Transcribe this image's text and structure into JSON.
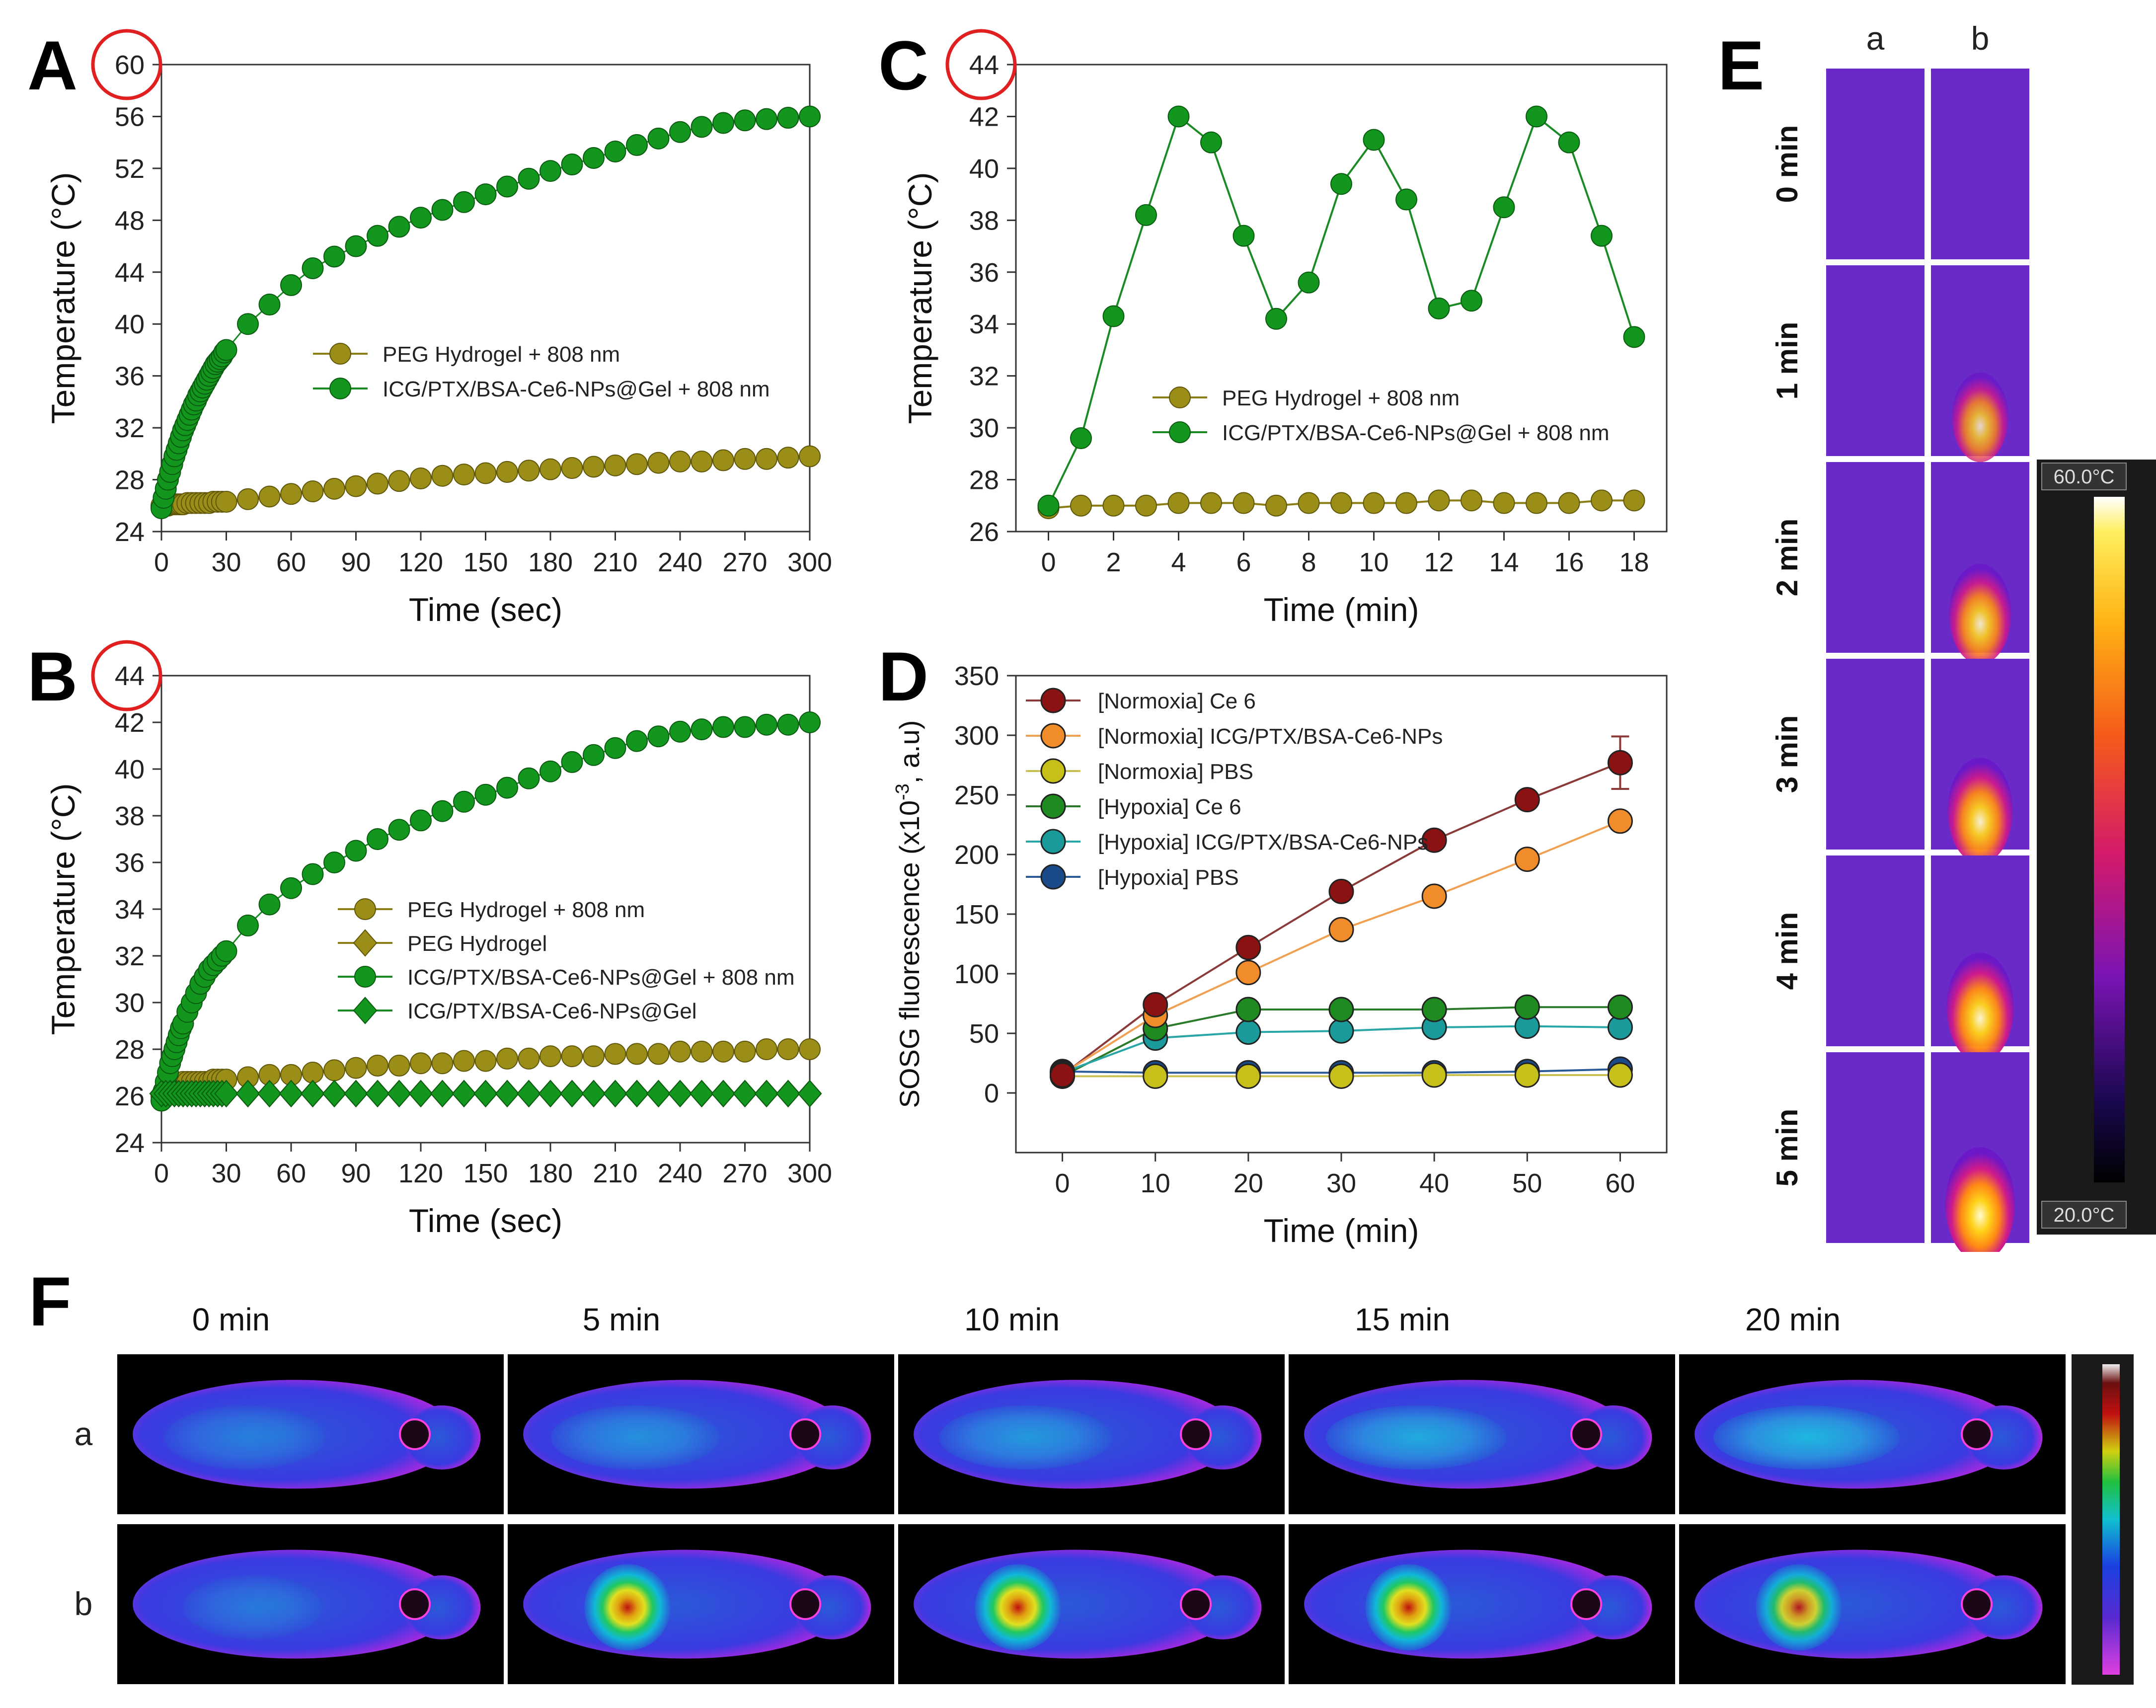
{
  "colors": {
    "olive": "#9b8e18",
    "olive_edge": "#5f560a",
    "green": "#12961e",
    "green_edge": "#0a5a10",
    "line_olive": "#8a7e14",
    "line_green": "#1a8a24",
    "circle": "#e02020"
  },
  "panel_labels": {
    "A": "A",
    "B": "B",
    "C": "C",
    "D": "D",
    "E": "E",
    "F": "F"
  },
  "chart_data": [
    {
      "id": "A",
      "type": "scatter",
      "xlabel": "Time (sec)",
      "ylabel": "Temperature (°C)",
      "xlim": [
        0,
        300
      ],
      "ylim": [
        24,
        60
      ],
      "xticks": [
        "0",
        "30",
        "60",
        "90",
        "120",
        "150",
        "180",
        "210",
        "240",
        "270",
        "300"
      ],
      "yticks": [
        "24",
        "28",
        "32",
        "36",
        "40",
        "44",
        "48",
        "52",
        "56",
        "60"
      ],
      "highlight_tick": "60",
      "series": [
        {
          "name": "PEG Hydrogel + 808 nm",
          "marker": "circle",
          "color": "olive",
          "x": [
            0,
            1,
            2,
            3,
            4,
            5,
            6,
            7,
            8,
            9,
            10,
            12,
            14,
            16,
            18,
            20,
            22,
            24,
            26,
            28,
            30,
            40,
            50,
            60,
            70,
            80,
            90,
            100,
            110,
            120,
            130,
            140,
            150,
            160,
            170,
            180,
            190,
            200,
            210,
            220,
            230,
            240,
            250,
            260,
            270,
            280,
            290,
            300
          ],
          "y": [
            26.0,
            26.0,
            26.0,
            26.0,
            26.1,
            26.1,
            26.1,
            26.1,
            26.1,
            26.1,
            26.1,
            26.2,
            26.2,
            26.2,
            26.2,
            26.2,
            26.2,
            26.3,
            26.3,
            26.3,
            26.3,
            26.5,
            26.7,
            26.9,
            27.1,
            27.3,
            27.5,
            27.7,
            27.9,
            28.1,
            28.3,
            28.4,
            28.5,
            28.6,
            28.7,
            28.8,
            28.9,
            29.0,
            29.1,
            29.2,
            29.3,
            29.4,
            29.4,
            29.5,
            29.6,
            29.6,
            29.7,
            29.8
          ]
        },
        {
          "name": "ICG/PTX/BSA-Ce6-NPs@Gel + 808 nm",
          "marker": "circle",
          "color": "green",
          "x": [
            0,
            1,
            2,
            3,
            4,
            5,
            6,
            7,
            8,
            9,
            10,
            11,
            12,
            13,
            14,
            15,
            16,
            17,
            18,
            19,
            20,
            21,
            22,
            23,
            24,
            25,
            26,
            27,
            28,
            29,
            30,
            40,
            50,
            60,
            70,
            80,
            90,
            100,
            110,
            120,
            130,
            140,
            150,
            160,
            170,
            180,
            190,
            200,
            210,
            220,
            230,
            240,
            250,
            260,
            270,
            280,
            290,
            300
          ],
          "y": [
            25.8,
            26.6,
            27.3,
            28.0,
            28.6,
            29.2,
            29.8,
            30.3,
            30.8,
            31.3,
            31.8,
            32.2,
            32.6,
            33.0,
            33.4,
            33.8,
            34.1,
            34.5,
            34.8,
            35.1,
            35.4,
            35.7,
            36.0,
            36.3,
            36.6,
            36.9,
            37.1,
            37.3,
            37.5,
            37.8,
            38.0,
            40.0,
            41.5,
            43.0,
            44.3,
            45.2,
            46.0,
            46.8,
            47.5,
            48.2,
            48.8,
            49.4,
            50.0,
            50.6,
            51.2,
            51.8,
            52.3,
            52.8,
            53.3,
            53.8,
            54.3,
            54.8,
            55.2,
            55.5,
            55.7,
            55.8,
            55.9,
            56.0
          ]
        }
      ],
      "legend": [
        "PEG Hydrogel + 808 nm",
        "ICG/PTX/BSA-Ce6-NPs@Gel + 808 nm"
      ]
    },
    {
      "id": "B",
      "type": "scatter",
      "xlabel": "Time (sec)",
      "ylabel": "Temperature (°C)",
      "xlim": [
        0,
        300
      ],
      "ylim": [
        24,
        44
      ],
      "xticks": [
        "0",
        "30",
        "60",
        "90",
        "120",
        "150",
        "180",
        "210",
        "240",
        "270",
        "300"
      ],
      "yticks": [
        "24",
        "26",
        "28",
        "30",
        "32",
        "34",
        "36",
        "38",
        "40",
        "42",
        "44"
      ],
      "highlight_tick": "44",
      "series": [
        {
          "name": "PEG Hydrogel + 808 nm",
          "marker": "circle",
          "color": "olive",
          "x": [
            0,
            2,
            4,
            6,
            8,
            10,
            12,
            14,
            16,
            18,
            20,
            22,
            24,
            26,
            28,
            30,
            40,
            50,
            60,
            70,
            80,
            90,
            100,
            110,
            120,
            130,
            140,
            150,
            160,
            170,
            180,
            190,
            200,
            210,
            220,
            230,
            240,
            250,
            260,
            270,
            280,
            290,
            300
          ],
          "y": [
            26.0,
            26.2,
            26.4,
            26.5,
            26.5,
            26.6,
            26.6,
            26.6,
            26.6,
            26.6,
            26.6,
            26.6,
            26.7,
            26.7,
            26.7,
            26.7,
            26.8,
            26.9,
            26.9,
            27.0,
            27.1,
            27.2,
            27.3,
            27.3,
            27.4,
            27.4,
            27.5,
            27.5,
            27.6,
            27.6,
            27.7,
            27.7,
            27.7,
            27.8,
            27.8,
            27.8,
            27.9,
            27.9,
            27.9,
            27.9,
            28.0,
            28.0,
            28.0
          ]
        },
        {
          "name": "PEG Hydrogel",
          "marker": "diamond",
          "color": "olive",
          "x": [
            0,
            10,
            20,
            30,
            40,
            50,
            60,
            70,
            80,
            90,
            100,
            110,
            120,
            130,
            140,
            150,
            160,
            170,
            180,
            190,
            200,
            210,
            220,
            230,
            240,
            250,
            260,
            270,
            280,
            290,
            300
          ],
          "y": [
            26.1,
            26.1,
            26.1,
            26.1,
            26.1,
            26.1,
            26.1,
            26.1,
            26.1,
            26.1,
            26.1,
            26.1,
            26.1,
            26.1,
            26.1,
            26.1,
            26.1,
            26.1,
            26.1,
            26.1,
            26.1,
            26.1,
            26.1,
            26.1,
            26.1,
            26.1,
            26.1,
            26.1,
            26.1,
            26.1,
            26.1
          ]
        },
        {
          "name": "ICG/PTX/BSA-Ce6-NPs@Gel + 808 nm",
          "marker": "circle",
          "color": "green",
          "x": [
            0,
            1,
            2,
            3,
            4,
            5,
            6,
            7,
            8,
            9,
            10,
            12,
            14,
            16,
            18,
            20,
            22,
            24,
            26,
            28,
            30,
            40,
            50,
            60,
            70,
            80,
            90,
            100,
            110,
            120,
            130,
            140,
            150,
            160,
            170,
            180,
            190,
            200,
            210,
            220,
            230,
            240,
            250,
            260,
            270,
            280,
            290,
            300
          ],
          "y": [
            25.8,
            26.2,
            26.6,
            27.0,
            27.4,
            27.7,
            28.0,
            28.3,
            28.6,
            28.9,
            29.1,
            29.6,
            30.0,
            30.4,
            30.8,
            31.1,
            31.4,
            31.6,
            31.8,
            32.0,
            32.2,
            33.3,
            34.2,
            34.9,
            35.5,
            36.0,
            36.5,
            37.0,
            37.4,
            37.8,
            38.2,
            38.6,
            38.9,
            39.2,
            39.6,
            39.9,
            40.3,
            40.6,
            40.9,
            41.2,
            41.4,
            41.6,
            41.7,
            41.8,
            41.8,
            41.9,
            41.9,
            42.0
          ]
        },
        {
          "name": "ICG/PTX/BSA-Ce6-NPs@Gel",
          "marker": "diamond",
          "color": "green",
          "x": [
            0,
            2,
            4,
            6,
            8,
            10,
            12,
            14,
            16,
            18,
            20,
            22,
            24,
            26,
            28,
            30,
            40,
            50,
            60,
            70,
            80,
            90,
            100,
            110,
            120,
            130,
            140,
            150,
            160,
            170,
            180,
            190,
            200,
            210,
            220,
            230,
            240,
            250,
            260,
            270,
            280,
            290,
            300
          ],
          "y": [
            26.1,
            26.1,
            26.1,
            26.1,
            26.1,
            26.1,
            26.1,
            26.1,
            26.1,
            26.1,
            26.1,
            26.1,
            26.1,
            26.1,
            26.1,
            26.1,
            26.1,
            26.1,
            26.1,
            26.1,
            26.1,
            26.1,
            26.1,
            26.1,
            26.1,
            26.1,
            26.1,
            26.1,
            26.1,
            26.1,
            26.1,
            26.1,
            26.1,
            26.1,
            26.1,
            26.1,
            26.1,
            26.1,
            26.1,
            26.1,
            26.1,
            26.1,
            26.1
          ]
        }
      ],
      "legend": [
        "PEG Hydrogel + 808 nm",
        "PEG Hydrogel",
        "ICG/PTX/BSA-Ce6-NPs@Gel + 808 nm",
        "ICG/PTX/BSA-Ce6-NPs@Gel"
      ]
    },
    {
      "id": "C",
      "type": "line",
      "xlabel": "Time (min)",
      "ylabel": "Temperature (°C)",
      "xlim": [
        -1,
        19
      ],
      "ylim": [
        26,
        44
      ],
      "xticks": [
        "0",
        "2",
        "4",
        "6",
        "8",
        "10",
        "12",
        "14",
        "16",
        "18"
      ],
      "yticks": [
        "26",
        "28",
        "30",
        "32",
        "34",
        "36",
        "38",
        "40",
        "42",
        "44"
      ],
      "highlight_tick": "44",
      "series": [
        {
          "name": "PEG Hydrogel + 808 nm",
          "marker": "circle",
          "color": "olive",
          "x": [
            0,
            1,
            2,
            3,
            4,
            5,
            6,
            7,
            8,
            9,
            10,
            11,
            12,
            13,
            14,
            15,
            16,
            17,
            18
          ],
          "y": [
            26.9,
            27.0,
            27.0,
            27.0,
            27.1,
            27.1,
            27.1,
            27.0,
            27.1,
            27.1,
            27.1,
            27.1,
            27.2,
            27.2,
            27.1,
            27.1,
            27.1,
            27.2,
            27.2
          ]
        },
        {
          "name": "ICG/PTX/BSA-Ce6-NPs@Gel + 808 nm",
          "marker": "circle",
          "color": "green",
          "x": [
            0,
            1,
            2,
            3,
            4,
            5,
            6,
            7,
            8,
            9,
            10,
            11,
            12,
            13,
            14,
            15,
            16,
            17,
            18
          ],
          "y": [
            27.0,
            29.6,
            34.3,
            38.2,
            42.0,
            41.0,
            37.4,
            34.2,
            35.6,
            39.4,
            41.1,
            38.8,
            34.6,
            34.9,
            38.5,
            42.0,
            41.0,
            37.4,
            33.5
          ]
        }
      ],
      "legend": [
        "PEG Hydrogel + 808 nm",
        "ICG/PTX/BSA-Ce6-NPs@Gel + 808 nm"
      ]
    },
    {
      "id": "D",
      "type": "line",
      "xlabel": "Time (min)",
      "ylabel": "SOSG fluorescence (x10",
      "ylabel_sup": "-3",
      "ylabel_tail": ", a.u)",
      "xlim": [
        -5,
        65
      ],
      "ylim": [
        -50,
        350
      ],
      "xticks": [
        "0",
        "10",
        "20",
        "30",
        "40",
        "50",
        "60"
      ],
      "yticks": [
        "0",
        "50",
        "100",
        "150",
        "200",
        "250",
        "300",
        "350"
      ],
      "series": [
        {
          "name": "[Normoxia] Ce 6",
          "color": "#8b1212",
          "line": "#8b3a3a",
          "x": [
            0,
            10,
            20,
            30,
            40,
            50,
            60
          ],
          "y": [
            15,
            74,
            122,
            169,
            212,
            246,
            277
          ]
        },
        {
          "name": "[Normoxia] ICG/PTX/BSA-Ce6-NPs",
          "color": "#f08c2a",
          "line": "#f0a050",
          "x": [
            0,
            10,
            20,
            30,
            40,
            50,
            60
          ],
          "y": [
            16,
            65,
            101,
            137,
            165,
            196,
            228
          ]
        },
        {
          "name": "[Normoxia] PBS",
          "color": "#c8c01a",
          "line": "#c8c050",
          "x": [
            0,
            10,
            20,
            30,
            40,
            50,
            60
          ],
          "y": [
            14,
            14,
            14,
            14,
            15,
            15,
            15
          ]
        },
        {
          "name": "[Hypoxia] Ce 6",
          "color": "#1f8a1f",
          "line": "#2a7a2a",
          "x": [
            0,
            10,
            20,
            30,
            40,
            50,
            60
          ],
          "y": [
            14,
            54,
            70,
            70,
            70,
            72,
            72
          ]
        },
        {
          "name": "[Hypoxia] ICG/PTX/BSA-Ce6-NPs",
          "color": "#1a9a9a",
          "line": "#2aa5a5",
          "x": [
            0,
            10,
            20,
            30,
            40,
            50,
            60
          ],
          "y": [
            17,
            46,
            51,
            52,
            55,
            56,
            55
          ]
        },
        {
          "name": "[Hypoxia] PBS",
          "color": "#1a4a8a",
          "line": "#2a5a9a",
          "x": [
            0,
            10,
            20,
            30,
            40,
            50,
            60
          ],
          "y": [
            18,
            17,
            17,
            17,
            17,
            18,
            20
          ]
        }
      ],
      "error_bar": {
        "series": 0,
        "x": 60,
        "y": 277,
        "err": 22
      }
    }
  ],
  "panel_E": {
    "columns": [
      "a",
      "b"
    ],
    "rows": [
      "0 min",
      "1 min",
      "2 min",
      "3 min",
      "4 min",
      "5 min"
    ],
    "hot_intensity": [
      0,
      0.55,
      0.75,
      0.85,
      0.92,
      1.0
    ],
    "scale_max": "60.0°C",
    "scale_min": "20.0°C"
  },
  "panel_F": {
    "times": [
      "0 min",
      "5 min",
      "10 min",
      "15 min",
      "20 min"
    ],
    "rows": [
      "a",
      "b"
    ],
    "a_intensity": [
      0.15,
      0.35,
      0.45,
      0.65,
      0.8
    ],
    "b_intensity": [
      0.05,
      1.0,
      1.0,
      1.0,
      0.9
    ]
  }
}
